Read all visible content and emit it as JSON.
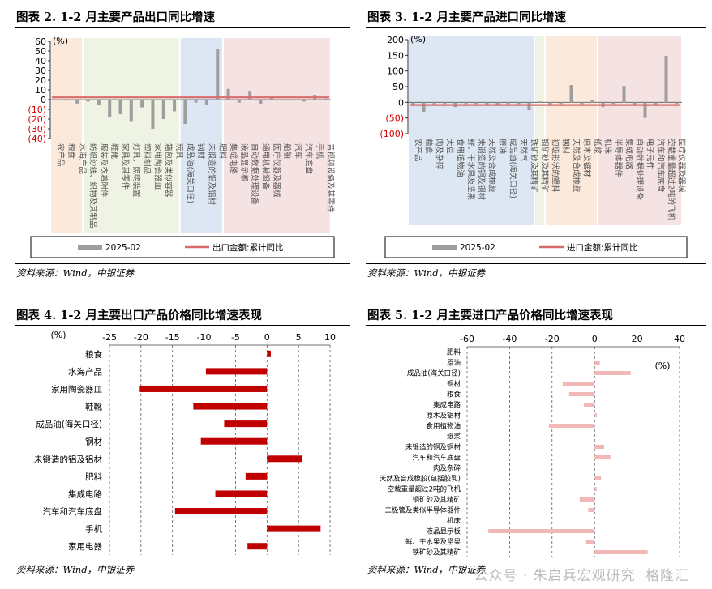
{
  "sources": {
    "text": "资料来源：Wind，中银证券"
  },
  "watermark": {
    "text": "公众号 · 朱启兵宏观研究",
    "logo": "格隆汇"
  },
  "colors": {
    "bar_gray": "#9e9e9e",
    "line_red": "#d96a6a",
    "bar_red": "#c00000",
    "bar_pink": "#f2b8b8",
    "band_orange": "#fbe9dc",
    "band_green": "#eef3e3",
    "band_blue": "#dde6f3",
    "band_pink": "#f5e2e2"
  },
  "chart_data": [
    {
      "id": "fig2",
      "type": "bar",
      "title": "图表 2. 1-2 月主要产品出口同比增速",
      "ylabel": "(%)",
      "ylim": [
        -40,
        60
      ],
      "yticks": [
        -40,
        -30,
        -20,
        -10,
        0,
        10,
        20,
        30,
        40,
        50,
        60
      ],
      "categories": [
        "农产品",
        "粮食",
        "水海产品",
        "纺织纱线、织物及其制品",
        "服装及衣着附件",
        "鞋靴",
        "家具及其零件",
        "灯具、照明装置",
        "塑料制品",
        "家用陶瓷器皿",
        "箱包及类似容器",
        "玩具",
        "成品油(海关口径)",
        "钢材",
        "未锻造的铝及铝材",
        "肥料",
        "集成电路",
        "液晶显示板",
        "自动数据处理设备",
        "通用机械设备",
        "医疗仪器及器械",
        "船舶",
        "汽车",
        "汽车底盘",
        "手机",
        "音视频设备及其零件"
      ],
      "series": [
        {
          "name": "2025-02",
          "kind": "bar",
          "values": [
            0,
            -1,
            -4,
            -2,
            -5,
            -18,
            -15,
            -22,
            -8,
            -30,
            -20,
            -12,
            -25,
            -3,
            -5,
            52,
            11,
            -3,
            9,
            -4,
            3,
            -1,
            -1,
            -2,
            5,
            1
          ]
        },
        {
          "name": "出口金额:累计同比",
          "kind": "line",
          "values": [
            2.3,
            2.3,
            2.3,
            2.3,
            2.3,
            2.3,
            2.3,
            2.3,
            2.3,
            2.3,
            2.3,
            2.3,
            2.3,
            2.3,
            2.3,
            2.3,
            2.3,
            2.3,
            2.3,
            2.3,
            2.3,
            2.3,
            2.3,
            2.3,
            2.3,
            2.3
          ]
        }
      ],
      "bands": [
        {
          "from": 0,
          "to": 3,
          "color": "band_orange"
        },
        {
          "from": 3,
          "to": 12,
          "color": "band_green"
        },
        {
          "from": 12,
          "to": 16,
          "color": "band_blue"
        },
        {
          "from": 16,
          "to": 26,
          "color": "band_pink"
        }
      ],
      "legend": [
        "2025-02",
        "出口金额:累计同比"
      ],
      "legend_position": "bottom"
    },
    {
      "id": "fig3",
      "type": "bar",
      "title": "图表 3. 1-2 月主要产品进口同比增速",
      "ylabel": "(%)",
      "ylim": [
        -100,
        200
      ],
      "yticks": [
        -100,
        -50,
        0,
        50,
        100,
        150,
        200
      ],
      "categories": [
        "农产品",
        "粮食",
        "肉及杂碎",
        "大豆",
        "食用植物油",
        "鲜、干水果及坚果",
        "未锻造的铜及铜材",
        "天然及合成橡胶",
        "原油",
        "成品油(海关口径)",
        "天然气",
        "铁矿砂及其精矿",
        "铜矿砂及其精矿",
        "初级形状的塑料",
        "钢材",
        "天然及合成橡胶",
        "原木及锯材",
        "纸浆",
        "机床",
        "半导体器件",
        "集成电路",
        "自动数据处理设备",
        "电子元件",
        "汽车和汽车底盘",
        "空载重量超过2吨的飞机",
        "医疗仪器及器械"
      ],
      "series": [
        {
          "name": "2025-02",
          "kind": "bar",
          "values": [
            -10,
            -30,
            -8,
            -5,
            -15,
            -5,
            -5,
            -10,
            -8,
            -5,
            -5,
            -25,
            3,
            -8,
            -5,
            55,
            -5,
            8,
            -15,
            -5,
            52,
            -8,
            -50,
            -10,
            148,
            -5
          ]
        },
        {
          "name": "进口金额:累计同比",
          "kind": "line",
          "values": [
            -8.4,
            -8.4,
            -8.4,
            -8.4,
            -8.4,
            -8.4,
            -8.4,
            -8.4,
            -8.4,
            -8.4,
            -8.4,
            -8.4,
            -8.4,
            -8.4,
            -8.4,
            -8.4,
            -8.4,
            -8.4,
            -8.4,
            -8.4,
            -8.4,
            -8.4,
            -8.4,
            -8.4,
            -8.4,
            -8.4
          ]
        }
      ],
      "bands": [
        {
          "from": 0,
          "to": 12,
          "color": "band_blue"
        },
        {
          "from": 12,
          "to": 13,
          "color": "band_green"
        },
        {
          "from": 13,
          "to": 18,
          "color": "band_orange"
        },
        {
          "from": 18,
          "to": 26,
          "color": "band_pink"
        }
      ],
      "legend": [
        "2025-02",
        "进口金额:累计同比"
      ],
      "legend_position": "bottom"
    },
    {
      "id": "fig4",
      "type": "bar",
      "orientation": "horizontal",
      "title": "图表 4. 1-2 月主要出口产品价格同比增速表现",
      "ylabel": "(%)",
      "xlim": [
        -25,
        10
      ],
      "xticks": [
        -25,
        -20,
        -15,
        -10,
        -5,
        0,
        5,
        10
      ],
      "categories": [
        "粮食",
        "水海产品",
        "家用陶瓷器皿",
        "鞋靴",
        "成品油(海关口径)",
        "钢材",
        "未锻造的铝及铝材",
        "肥料",
        "集成电路",
        "汽车和汽车底盘",
        "手机",
        "家用电器"
      ],
      "values": [
        0.6,
        -9.7,
        -20.2,
        -11.7,
        -6.8,
        -10.5,
        5.6,
        -3.4,
        -8.2,
        -14.6,
        8.5,
        -3.1
      ],
      "grid": true
    },
    {
      "id": "fig5",
      "type": "bar",
      "orientation": "horizontal",
      "title": "图表 5. 1-2 月主要进口产品价格同比增速表现",
      "ylabel": "(%)",
      "xlim": [
        -60,
        40
      ],
      "xticks": [
        -60,
        -40,
        -20,
        0,
        20,
        40
      ],
      "categories": [
        "肥料",
        "原油",
        "成品油(海关口径)",
        "铜材",
        "粮食",
        "集成电路",
        "原木及锯材",
        "食用植物油",
        "纸浆",
        "未锻造的铜及铜材",
        "汽车和汽车底盘",
        "肉及杂碎",
        "天然及合成橡胶(包括胶乳)",
        "空载重量超过2吨的飞机",
        "铜矿砂及其精矿",
        "二极管及类似半导体器件",
        "机床",
        "液晶显示板",
        "鲜、干水果及坚果",
        "铁矿砂及其精矿"
      ],
      "values": [
        0,
        2.5,
        17,
        -15,
        -12,
        -5,
        1,
        -21.5,
        0,
        4.5,
        7.5,
        0,
        3,
        1,
        -7,
        -3,
        0,
        -50,
        -4,
        25
      ],
      "grid": true
    }
  ]
}
